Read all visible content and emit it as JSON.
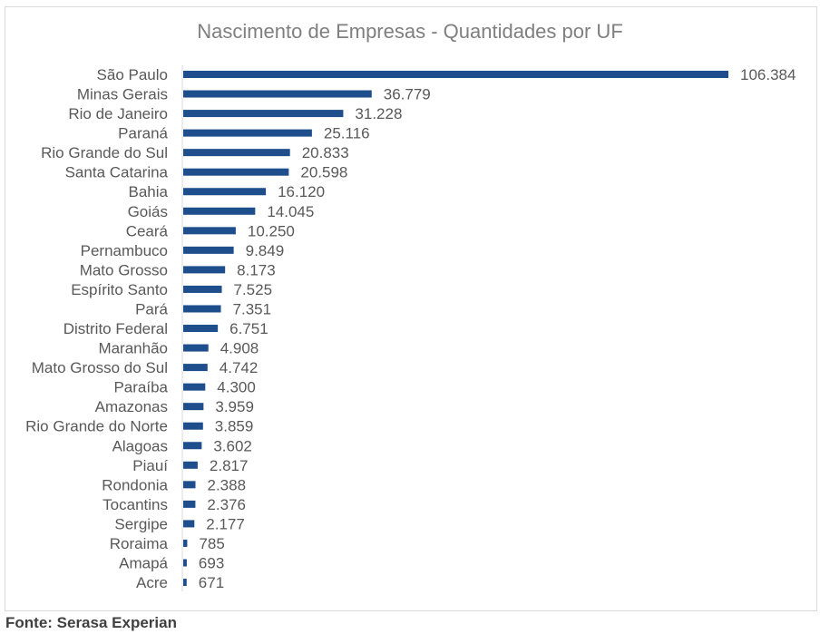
{
  "chart_data": {
    "type": "bar",
    "orientation": "horizontal",
    "title": "Nascimento de Empresas - Quantidades por UF",
    "categories": [
      "São Paulo",
      "Minas Gerais",
      "Rio de Janeiro",
      "Paraná",
      "Rio Grande do Sul",
      "Santa Catarina",
      "Bahia",
      "Goiás",
      "Ceará",
      "Pernambuco",
      "Mato Grosso",
      "Espírito Santo",
      "Pará",
      "Distrito Federal",
      "Maranhão",
      "Mato Grosso do Sul",
      "Paraíba",
      "Amazonas",
      "Rio Grande do Norte",
      "Alagoas",
      "Piauí",
      "Rondonia",
      "Tocantins",
      "Sergipe",
      "Roraima",
      "Amapá",
      "Acre"
    ],
    "values": [
      106384,
      36779,
      31228,
      25116,
      20833,
      20598,
      16120,
      14045,
      10250,
      9849,
      8173,
      7525,
      7351,
      6751,
      4908,
      4742,
      4300,
      3959,
      3859,
      3602,
      2817,
      2388,
      2376,
      2177,
      785,
      693,
      671
    ],
    "value_labels": [
      "106.384",
      "36.779",
      "31.228",
      "25.116",
      "20.833",
      "20.598",
      "16.120",
      "14.045",
      "10.250",
      "9.849",
      "8.173",
      "7.525",
      "7.351",
      "6.751",
      "4.908",
      "4.742",
      "4.300",
      "3.959",
      "3.859",
      "3.602",
      "2.817",
      "2.388",
      "2.376",
      "2.177",
      "785",
      "693",
      "671"
    ],
    "bar_color": "#1f4e8c",
    "grid": false,
    "legend": "none"
  },
  "footer": {
    "source": "Fonte: Serasa Experian"
  }
}
